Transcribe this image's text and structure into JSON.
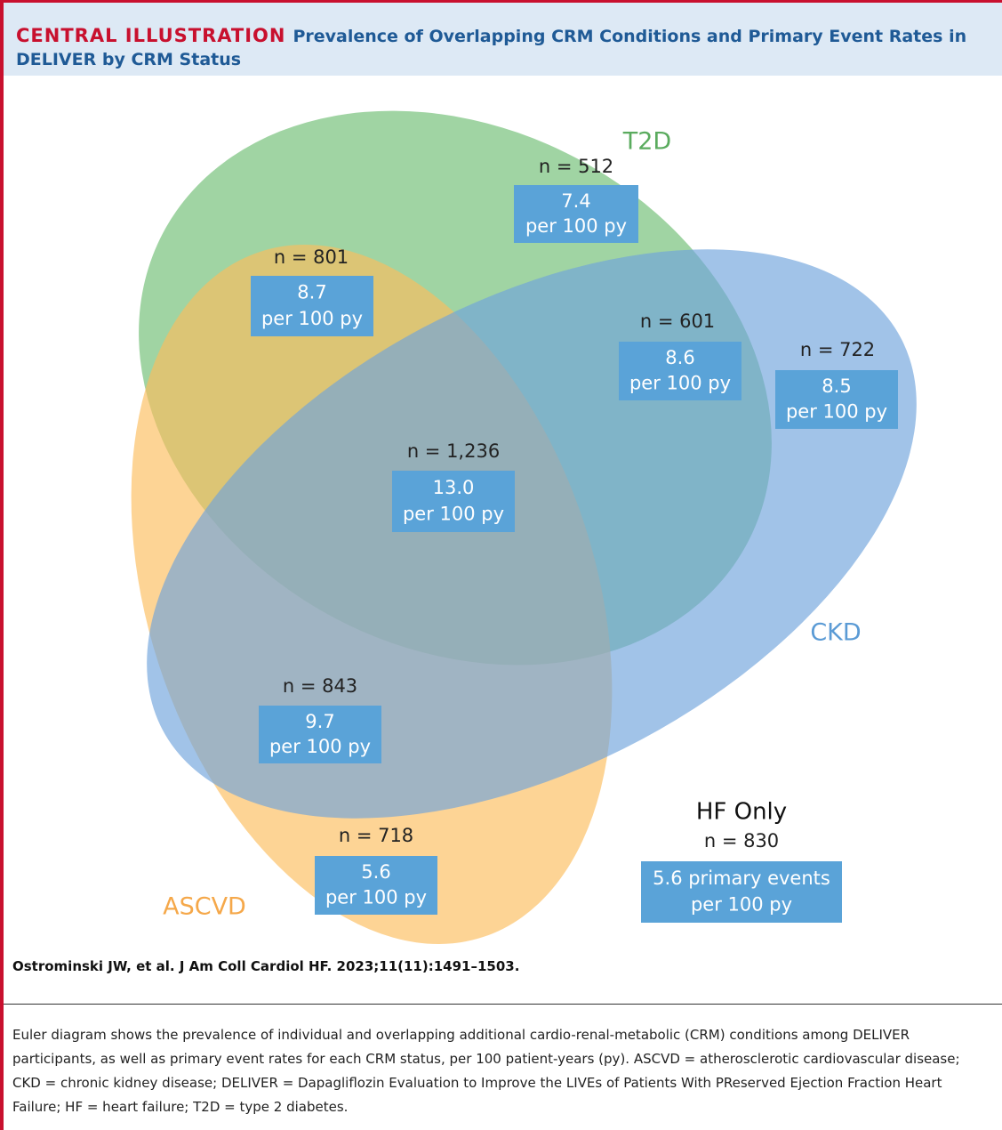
{
  "header": {
    "label": "CENTRAL ILLUSTRATION",
    "title": "Prevalence of Overlapping CRM Conditions and Primary Event Rates in DELIVER by CRM Status"
  },
  "sets": [
    {
      "label": "T2D"
    },
    {
      "label": "CKD"
    },
    {
      "label": "ASCVD"
    }
  ],
  "regions": [
    {
      "n": "n = 512",
      "rate": "7.4",
      "unit": "per 100 py"
    },
    {
      "n": "n = 801",
      "rate": "8.7",
      "unit": "per 100 py"
    },
    {
      "n": "n = 601",
      "rate": "8.6",
      "unit": "per 100 py"
    },
    {
      "n": "n = 722",
      "rate": "8.5",
      "unit": "per 100 py"
    },
    {
      "n": "n = 1,236",
      "rate": "13.0",
      "unit": "per 100 py"
    },
    {
      "n": "n = 843",
      "rate": "9.7",
      "unit": "per 100 py"
    },
    {
      "n": "n = 718",
      "rate": "5.6",
      "unit": "per 100 py"
    }
  ],
  "hf_only": {
    "label": "HF Only",
    "n": "n = 830",
    "rate": "5.6 primary events",
    "unit": "per 100 py"
  },
  "citation": "Ostrominski JW, et al. J Am Coll Cardiol HF. 2023;11(11):1491–1503.",
  "caption": "Euler diagram shows the prevalence of individual and overlapping additional cardio-renal-metabolic (CRM) conditions among DELIVER participants, as well as primary event rates for each CRM status, per 100 patient-years (py). ASCVD = atherosclerotic cardiovascular disease; CKD = chronic kidney disease; DELIVER = Dapagliflozin Evaluation to Improve the LIVEs of Patients With PReserved Ejection Fraction Heart Failure; HF = heart failure; T2D = type 2 diabetes."
}
